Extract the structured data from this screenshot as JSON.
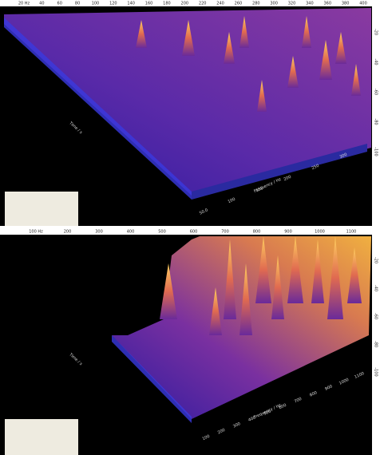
{
  "panels": [
    {
      "top_ruler": [
        "20 Hz",
        "40",
        "60",
        "80",
        "100",
        "120",
        "140",
        "160",
        "180",
        "200",
        "220",
        "240",
        "260",
        "280",
        "300",
        "320",
        "340",
        "360",
        "380",
        "400"
      ],
      "right_ruler": [
        "-20",
        "-40",
        "-60",
        "-80",
        "-100"
      ],
      "frequency_ticks": [
        "50.0",
        "100",
        "150",
        "200",
        "250",
        "300"
      ],
      "frequency_label": "Frequency / Hz",
      "time_label": "Time / s"
    },
    {
      "top_ruler": [
        "100 Hz",
        "200",
        "300",
        "400",
        "500",
        "600",
        "700",
        "800",
        "900",
        "1000",
        "1100"
      ],
      "right_ruler": [
        "-20",
        "-40",
        "-60",
        "-80",
        "-100"
      ],
      "frequency_ticks": [
        "100",
        "200",
        "300",
        "400",
        "500",
        "600",
        "700",
        "800",
        "900",
        "1000",
        "1100"
      ],
      "frequency_label": "Frequency / Hz",
      "time_label": "Time / s"
    }
  ]
}
